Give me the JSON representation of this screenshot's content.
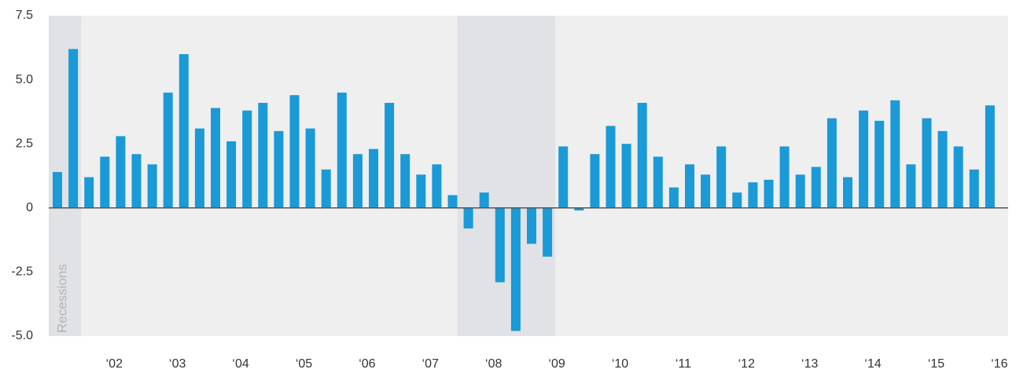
{
  "chart_data": {
    "type": "bar",
    "categories": [
      null,
      null,
      null,
      "‘02",
      null,
      null,
      null,
      "‘03",
      null,
      null,
      null,
      "‘04",
      null,
      null,
      null,
      "‘05",
      null,
      null,
      null,
      "‘06",
      null,
      null,
      null,
      "‘07",
      null,
      null,
      null,
      "‘08",
      null,
      null,
      null,
      "‘09",
      null,
      null,
      null,
      "‘10",
      null,
      null,
      null,
      "‘11",
      null,
      null,
      null,
      "‘12",
      null,
      null,
      null,
      "‘13",
      null,
      null,
      null,
      "‘14",
      null,
      null,
      null,
      "‘15",
      null,
      null,
      null,
      "‘16"
    ],
    "values": [
      1.4,
      6.2,
      1.2,
      2.0,
      2.8,
      2.1,
      1.7,
      4.5,
      6.0,
      3.1,
      3.9,
      2.6,
      3.8,
      4.1,
      3.0,
      4.4,
      3.1,
      1.5,
      4.5,
      2.1,
      2.3,
      4.1,
      2.1,
      1.3,
      1.7,
      0.5,
      -0.8,
      0.6,
      -2.9,
      -4.8,
      -1.4,
      -1.9,
      2.4,
      -0.1,
      2.1,
      3.2,
      2.5,
      4.1,
      2.0,
      0.8,
      1.7,
      1.3,
      2.4,
      0.6,
      1.0,
      1.1,
      2.4,
      1.3,
      1.6,
      3.5,
      1.2,
      3.8,
      3.4,
      4.2,
      1.7,
      3.5,
      3.0,
      2.4,
      1.5,
      4.0
    ],
    "color": "#1a9ad6",
    "ylim": [
      -5,
      7.5
    ],
    "yticks": [
      7.5,
      {
        "value": 5,
        "label": "5.0"
      },
      2.5,
      0,
      -2.5,
      {
        "value": -5,
        "label": "-5.0"
      }
    ],
    "recessions": {
      "label": "Recessions",
      "ranges": [
        [
          0,
          1
        ],
        [
          26,
          31
        ]
      ]
    }
  }
}
